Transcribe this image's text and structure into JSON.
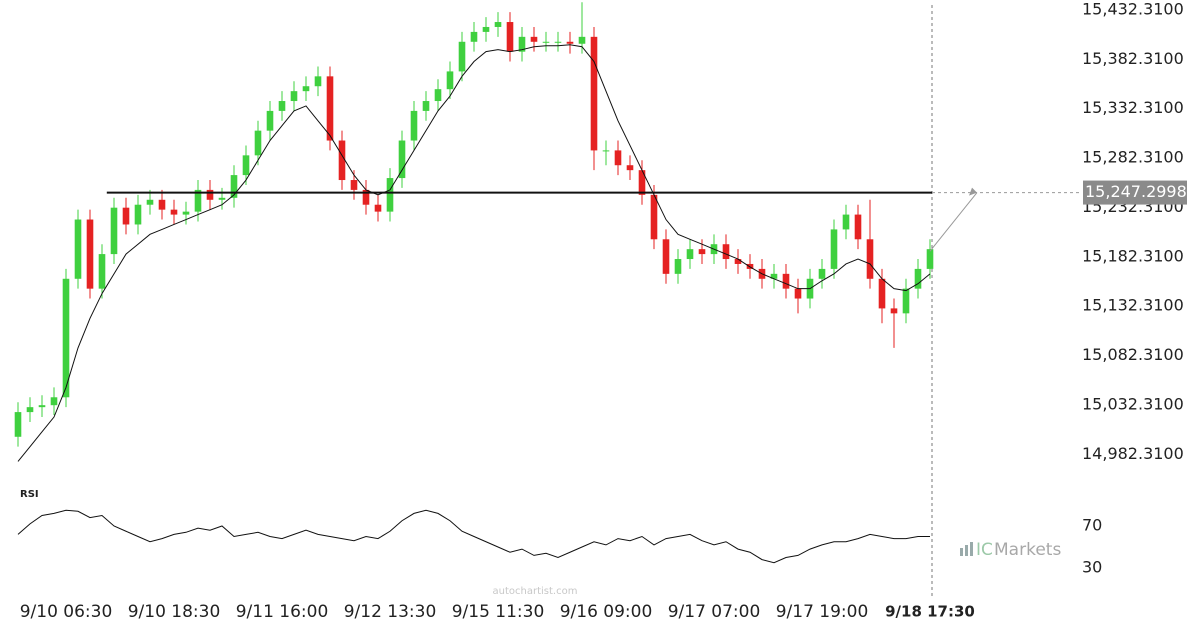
{
  "chart_data": [
    {
      "type": "candlestick",
      "xlim": [
        -0.5,
        76.5
      ],
      "xticks": [
        {
          "value": 4,
          "label": "9/10 06:30"
        },
        {
          "value": 13,
          "label": "9/10 18:30"
        },
        {
          "value": 22,
          "label": "9/11 16:00"
        },
        {
          "value": 31,
          "label": "9/12 13:30"
        },
        {
          "value": 40,
          "label": "9/15 11:30"
        },
        {
          "value": 49,
          "label": "9/16 09:00"
        },
        {
          "value": 58,
          "label": "9/17 07:00"
        },
        {
          "value": 67,
          "label": "9/17 19:00"
        },
        {
          "value": 76,
          "label": "9/18 17:30"
        }
      ],
      "ylim": [
        14962.31,
        15442.31
      ],
      "yticks": [
        {
          "value": 15432.31,
          "label": "15,432.3100"
        },
        {
          "value": 15382.31,
          "label": "15,382.3100"
        },
        {
          "value": 15332.31,
          "label": "15,332.3100"
        },
        {
          "value": 15282.31,
          "label": "15,282.3100"
        },
        {
          "value": 15232.31,
          "label": "15,232.3100"
        },
        {
          "value": 15182.31,
          "label": "15,182.3100"
        },
        {
          "value": 15132.31,
          "label": "15,132.3100"
        },
        {
          "value": 15082.31,
          "label": "15,082.3100"
        },
        {
          "value": 15032.31,
          "label": "15,032.3100"
        },
        {
          "value": 14982.31,
          "label": "14,982.3100"
        }
      ],
      "up_color": "#3fd03f",
      "down_color": "#e52222",
      "open": [
        15000,
        15025,
        15030,
        15032,
        15040,
        15160,
        15220,
        15150,
        15185,
        15232,
        15215,
        15235,
        15240,
        15230,
        15225,
        15228,
        15250,
        15240,
        15242,
        15265,
        15285,
        15310,
        15330,
        15340,
        15350,
        15355,
        15365,
        15300,
        15260,
        15250,
        15235,
        15228,
        15262,
        15300,
        15330,
        15340,
        15352,
        15370,
        15400,
        15410,
        15415,
        15420,
        15390,
        15405,
        15400,
        15400,
        15400,
        15398,
        15405,
        15290,
        15290,
        15275,
        15270,
        15245,
        15200,
        15165,
        15180,
        15190,
        15185,
        15195,
        15180,
        15175,
        15170,
        15160,
        15165,
        15150,
        15140,
        15160,
        15170,
        15210,
        15225,
        15200,
        15160,
        15130,
        15125,
        15150,
        15170
      ],
      "high": [
        15035,
        15040,
        15042,
        15050,
        15170,
        15230,
        15230,
        15195,
        15242,
        15242,
        15245,
        15250,
        15250,
        15240,
        15238,
        15260,
        15260,
        15252,
        15275,
        15295,
        15320,
        15340,
        15350,
        15360,
        15365,
        15375,
        15375,
        15310,
        15270,
        15260,
        15245,
        15272,
        15310,
        15340,
        15350,
        15362,
        15380,
        15410,
        15420,
        15425,
        15430,
        15430,
        15415,
        15415,
        15410,
        15410,
        15410,
        15440,
        15415,
        15300,
        15300,
        15285,
        15280,
        15255,
        15210,
        15190,
        15200,
        15200,
        15205,
        15205,
        15190,
        15185,
        15180,
        15175,
        15175,
        15160,
        15170,
        15180,
        15220,
        15235,
        15235,
        15240,
        15170,
        15140,
        15160,
        15180,
        15200
      ],
      "low": [
        14990,
        15015,
        15020,
        15022,
        15030,
        15150,
        15140,
        15140,
        15175,
        15205,
        15205,
        15225,
        15220,
        15215,
        15215,
        15218,
        15230,
        15230,
        15232,
        15255,
        15275,
        15300,
        15320,
        15330,
        15340,
        15345,
        15290,
        15250,
        15240,
        15225,
        15218,
        15218,
        15252,
        15290,
        15320,
        15330,
        15342,
        15360,
        15390,
        15400,
        15405,
        15380,
        15380,
        15390,
        15390,
        15390,
        15388,
        15388,
        15270,
        15275,
        15265,
        15260,
        15235,
        15190,
        15155,
        15155,
        15170,
        15175,
        15175,
        15170,
        15165,
        15160,
        15150,
        15150,
        15140,
        15125,
        15130,
        15150,
        15160,
        15200,
        15190,
        15150,
        15115,
        15090,
        15115,
        15140,
        15160
      ],
      "close": [
        15025,
        15030,
        15032,
        15040,
        15160,
        15220,
        15150,
        15185,
        15232,
        15215,
        15235,
        15240,
        15230,
        15225,
        15228,
        15250,
        15240,
        15242,
        15265,
        15285,
        15310,
        15330,
        15340,
        15350,
        15355,
        15365,
        15300,
        15260,
        15250,
        15235,
        15228,
        15262,
        15300,
        15330,
        15340,
        15352,
        15370,
        15400,
        15410,
        15415,
        15420,
        15390,
        15405,
        15400,
        15400,
        15400,
        15398,
        15405,
        15290,
        15290,
        15275,
        15270,
        15245,
        15200,
        15165,
        15180,
        15190,
        15185,
        15195,
        15180,
        15175,
        15170,
        15160,
        15165,
        15150,
        15140,
        15160,
        15170,
        15210,
        15225,
        15200,
        15160,
        15130,
        15125,
        15150,
        15170,
        15190
      ],
      "ma": {
        "color": "#111111",
        "values": [
          14975,
          14990,
          15005,
          15020,
          15050,
          15090,
          15120,
          15145,
          15165,
          15185,
          15195,
          15205,
          15210,
          15215,
          15220,
          15225,
          15230,
          15235,
          15245,
          15260,
          15280,
          15300,
          15315,
          15330,
          15335,
          15320,
          15305,
          15285,
          15265,
          15250,
          15245,
          15250,
          15270,
          15290,
          15310,
          15330,
          15345,
          15365,
          15380,
          15390,
          15392,
          15390,
          15392,
          15395,
          15396,
          15396,
          15397,
          15395,
          15380,
          15350,
          15320,
          15295,
          15270,
          15245,
          15220,
          15205,
          15200,
          15195,
          15190,
          15185,
          15180,
          15172,
          15165,
          15160,
          15155,
          15150,
          15150,
          15158,
          15165,
          15175,
          15180,
          15175,
          15160,
          15150,
          15148,
          15155,
          15165
        ]
      },
      "level": {
        "value": 15247.2998,
        "label": "15,247.2998",
        "color": "#111111"
      },
      "watermark": "autochartist.com",
      "logo": [
        "IC",
        "Markets"
      ]
    },
    {
      "type": "line",
      "title": "RSI",
      "color": "#111111",
      "ylim": [
        10,
        100
      ],
      "yticks": [
        70,
        30
      ],
      "values": [
        62,
        72,
        80,
        82,
        85,
        84,
        78,
        80,
        70,
        65,
        60,
        55,
        58,
        62,
        64,
        68,
        66,
        70,
        60,
        62,
        64,
        60,
        58,
        62,
        66,
        62,
        60,
        58,
        56,
        60,
        58,
        65,
        75,
        82,
        85,
        82,
        75,
        65,
        60,
        55,
        50,
        45,
        48,
        42,
        44,
        40,
        45,
        50,
        55,
        52,
        58,
        56,
        60,
        52,
        58,
        60,
        62,
        56,
        52,
        55,
        48,
        45,
        38,
        35,
        40,
        42,
        48,
        52,
        55,
        55,
        58,
        62,
        60,
        58,
        58,
        60,
        60
      ]
    }
  ]
}
